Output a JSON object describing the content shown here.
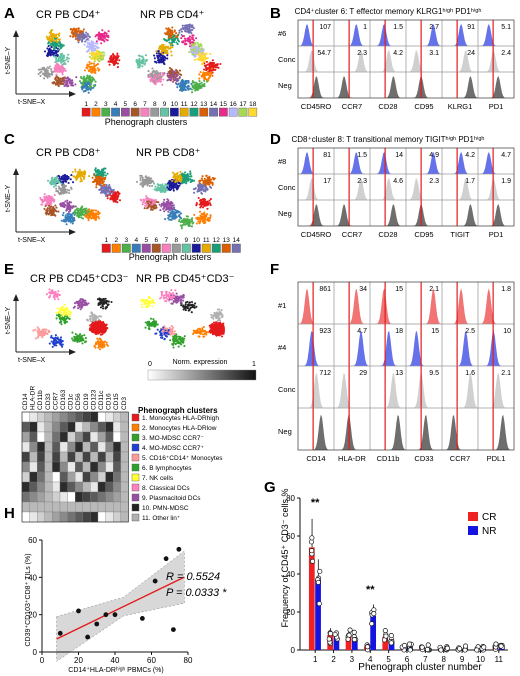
{
  "panels": {
    "A": {
      "letter": "A",
      "titles": [
        "CR PB CD4⁺",
        "NR PB CD4⁺"
      ],
      "y_axis": "t-SNE–Y",
      "x_axis": "t-SNE–X",
      "cluster_label": "Phenograph clusters",
      "clusters": [
        "1",
        "2",
        "3",
        "4",
        "5",
        "6",
        "7",
        "8",
        "9",
        "10",
        "11",
        "12",
        "13",
        "14",
        "15",
        "16",
        "17",
        "18"
      ],
      "colors": [
        "#e41a1c",
        "#ff7f00",
        "#4daf4a",
        "#377eb8",
        "#984ea3",
        "#a65628",
        "#f781bf",
        "#999999",
        "#66c2a5",
        "#1a1a9a",
        "#e6ab02",
        "#1b9e77",
        "#d95f02",
        "#7570b3",
        "#e7298a",
        "#b8b8ff",
        "#a6d854",
        "#ffd92f"
      ]
    },
    "B": {
      "letter": "B",
      "title": "CD4⁺cluster 6: T effector memory KLRG1ʰⁱᵍʰ PD1ʰⁱᵍʰ",
      "rows": [
        "#6",
        "Conc",
        "Neg"
      ],
      "markers": [
        "CD45RO",
        "CCR7",
        "CD28",
        "CD95",
        "KLRG1",
        "PD1"
      ],
      "values_row1": [
        "107",
        "1",
        "1.5",
        "2.7",
        "91",
        "5.1"
      ],
      "values_row2": [
        "54.7",
        "2.3",
        "4.2",
        "3.1",
        "24",
        "2.4"
      ]
    },
    "C": {
      "letter": "C",
      "titles": [
        "CR PB CD8⁺",
        "NR PB CD8⁺"
      ],
      "y_axis": "t-SNE–Y",
      "x_axis": "t-SNE–X",
      "cluster_label": "Phenograph clusters",
      "clusters": [
        "1",
        "2",
        "3",
        "4",
        "5",
        "6",
        "7",
        "8",
        "9",
        "10",
        "11",
        "12",
        "13",
        "14"
      ],
      "colors": [
        "#e41a1c",
        "#ff7f00",
        "#4daf4a",
        "#377eb8",
        "#984ea3",
        "#a65628",
        "#f781bf",
        "#999999",
        "#66c2a5",
        "#1a1a9a",
        "#e6ab02",
        "#1b9e77",
        "#d95f02",
        "#7570b3"
      ]
    },
    "D": {
      "letter": "D",
      "title": "CD8⁺cluster 8: T transitional memory TIGITʰⁱᵍʰ PD1ʰⁱᵍʰ",
      "rows": [
        "#8",
        "Conc",
        "Neg"
      ],
      "markers": [
        "CD45RO",
        "CCR7",
        "CD28",
        "CD95",
        "TIGIT",
        "PD1"
      ],
      "values_row1": [
        "81",
        "1.5",
        "14",
        "4.9",
        "4.2",
        "4.7"
      ],
      "values_row2": [
        "17",
        "2.3",
        "4.6",
        "2.3",
        "1.7",
        "1.9"
      ]
    },
    "E": {
      "letter": "E",
      "titles": [
        "CR PB CD45⁺CD3⁻",
        "NR PB CD45⁺CD3⁻"
      ],
      "y_axis": "t-SNE–Y",
      "x_axis": "t-SNE–X",
      "norm_label": "Norm. expression",
      "norm_min": "0",
      "norm_max": "1",
      "heat_columns": [
        "CD14",
        "HLA-DR",
        "CD11b",
        "CD33",
        "CCR7",
        "CD163",
        "CD1c",
        "CD56",
        "CD19",
        "CD123",
        "CD11c",
        "CD16",
        "CD15",
        "CD3"
      ],
      "heat_title": "Phenograph clusters",
      "heat_rows": [
        "1. Monocytes HLA-DRhigh",
        "2. Monocytes HLA-DRlow",
        "3. MO-MDSC CCR7⁻",
        "4. MO-MDSC CCR7⁺",
        "5. CD16⁺CD14⁺ Monocytes",
        "6. B lymphocytes",
        "7. NK cells",
        "8. Classical DCs",
        "9. Plasmacitoid DCs",
        "10. PMN-MDSC",
        "11. Other lin⁺"
      ],
      "heat_colors": [
        "#e41a1c",
        "#ff7f00",
        "#33a02c",
        "#1f3fd0",
        "#fb9a99",
        "#2ca02c",
        "#ffff33",
        "#ff7fbf",
        "#984ea3",
        "#222222",
        "#b0b0b0"
      ]
    },
    "F": {
      "letter": "F",
      "rows": [
        "#1",
        "#4",
        "Conc",
        "Neg"
      ],
      "markers": [
        "CD14",
        "HLA-DR",
        "CD11b",
        "CD33",
        "CCR7",
        "PDL1"
      ],
      "values_row1": [
        "861",
        "34",
        "15",
        "2.1",
        "",
        "1.8"
      ],
      "values_row2": [
        "923",
        "4.7",
        "18",
        "15",
        "2.5",
        "10"
      ],
      "values_row3": [
        "712",
        "29",
        "13",
        "9.5",
        "1.6",
        "2.1"
      ]
    },
    "G": {
      "letter": "G",
      "ylabel": "Frequency of CD45⁺ CD3⁻ cells %",
      "xlabel": "Phenograph cluster number",
      "legend": [
        "CR",
        "NR"
      ],
      "significance": [
        "**",
        "**"
      ]
    },
    "H": {
      "letter": "H",
      "ylabel": "CD39⁺CD103⁺CD8⁺ TILs (%)",
      "xlabel": "CD14⁺HLA-DRʰⁱᵍʰ PBMCs (%)",
      "r_text": "R = 0.5524",
      "p_text": "P = 0.0333 *"
    }
  },
  "chart_data": [
    {
      "type": "bar",
      "panel": "G",
      "categories": [
        "1",
        "2",
        "3",
        "4",
        "5",
        "6",
        "7",
        "8",
        "9",
        "10",
        "11"
      ],
      "series": [
        {
          "name": "CR",
          "values": [
            54,
            8,
            7,
            2,
            7,
            1,
            0.5,
            0.5,
            0.5,
            0.3,
            1.5
          ]
        },
        {
          "name": "NR",
          "values": [
            37,
            7,
            6,
            18,
            5,
            2,
            0.8,
            0.5,
            0.5,
            0.5,
            1.5
          ]
        }
      ],
      "ylim": [
        0,
        80
      ],
      "yticks": [
        0,
        20,
        40,
        60,
        80
      ],
      "colors": [
        "#ee2222",
        "#1414e0"
      ]
    },
    {
      "type": "scatter",
      "panel": "H",
      "x": [
        10,
        20,
        25,
        30,
        35,
        40,
        55,
        62,
        68,
        72,
        75
      ],
      "y": [
        10,
        22,
        8,
        15,
        20,
        20,
        18,
        38,
        50,
        12,
        55
      ],
      "xlim": [
        0,
        80
      ],
      "ylim": [
        0,
        60
      ],
      "xticks": [
        0,
        20,
        40,
        60,
        80
      ],
      "yticks": [
        0,
        20,
        40,
        60
      ],
      "fit_color": "#e41a1c"
    }
  ]
}
